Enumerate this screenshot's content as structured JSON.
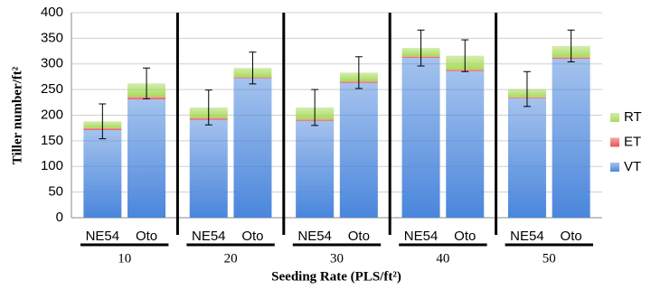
{
  "chart_data": {
    "type": "stacked_bar",
    "y_label": "Tiller number/ft²",
    "x_label": "Seeding Rate (PLS/ft²)",
    "groups": [
      "10",
      "20",
      "30",
      "40",
      "50"
    ],
    "categories": [
      "NE54",
      "Oto",
      "NE54",
      "Oto",
      "NE54",
      "Oto",
      "NE54",
      "Oto",
      "NE54",
      "Oto"
    ],
    "series": [
      {
        "name": "VT",
        "color": "#4a86dc",
        "values": [
          171,
          231,
          191,
          272,
          189,
          263,
          312,
          286,
          233,
          310
        ]
      },
      {
        "name": "ET",
        "color": "#e8524e",
        "values": [
          4,
          5,
          4,
          2,
          3,
          3,
          3,
          3,
          2,
          3
        ]
      },
      {
        "name": "RT",
        "color": "#a8db5c",
        "values": [
          13,
          26,
          20,
          18,
          23,
          17,
          16,
          27,
          16,
          22
        ]
      }
    ],
    "errors": [
      34,
      30,
      34,
      31,
      35,
      31,
      35,
      31,
      34,
      31
    ],
    "ylim": [
      0,
      400
    ],
    "yticks": [
      0,
      50,
      100,
      150,
      200,
      250,
      300,
      350,
      400
    ],
    "grid": true
  }
}
